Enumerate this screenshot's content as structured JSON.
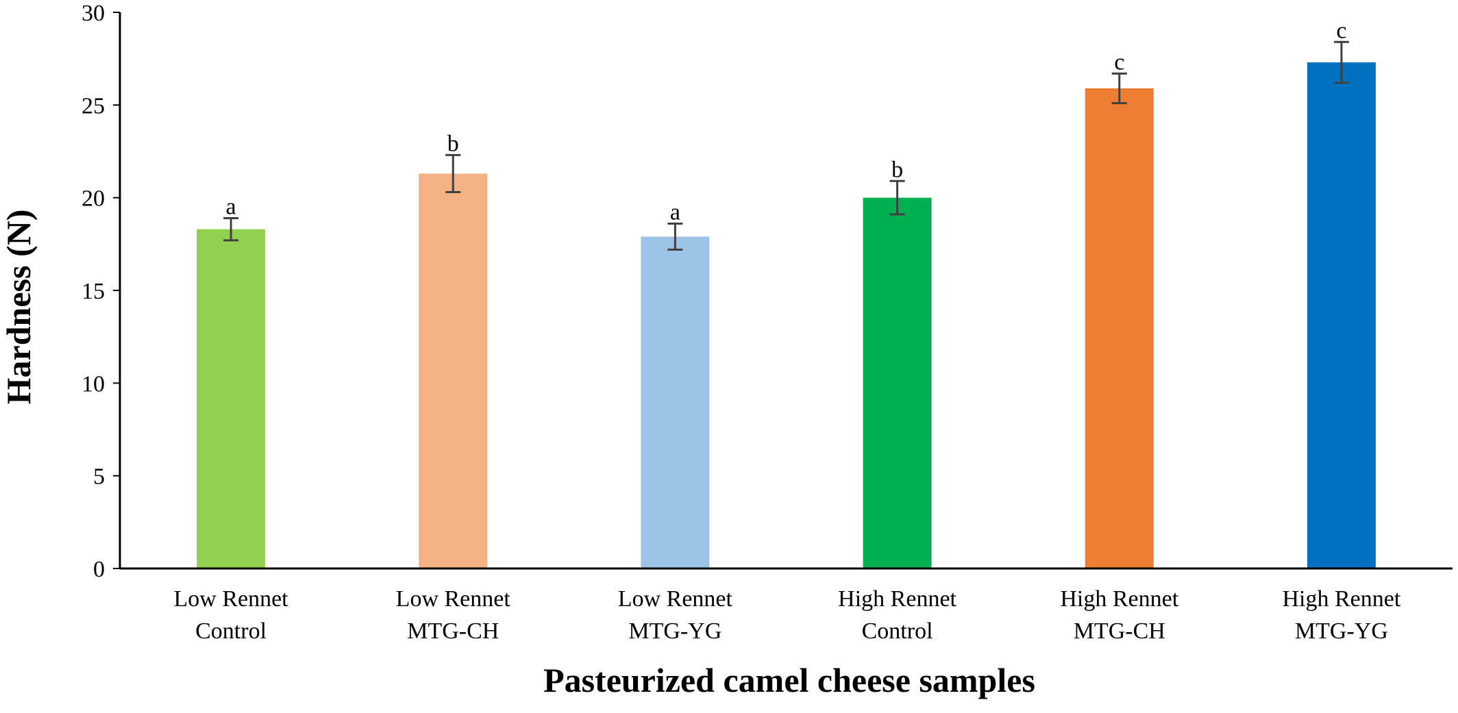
{
  "chart_data": {
    "type": "bar",
    "ylabel": "Hardness (N)",
    "xlabel": "Pasteurized camel cheese samples",
    "ylim": [
      0,
      30
    ],
    "yticks": [
      0,
      5,
      10,
      15,
      20,
      25,
      30
    ],
    "grid": false,
    "legend": "none",
    "categories": [
      [
        "Low Rennet",
        "Control"
      ],
      [
        "Low Rennet",
        "MTG-CH"
      ],
      [
        "Low Rennet",
        "MTG-YG"
      ],
      [
        "High Rennet",
        "Control"
      ],
      [
        "High Rennet",
        "MTG-CH"
      ],
      [
        "High Rennet",
        "MTG-YG"
      ]
    ],
    "values": [
      18.3,
      21.3,
      17.9,
      20.0,
      25.9,
      27.3
    ],
    "errors": [
      0.6,
      1.0,
      0.7,
      0.9,
      0.8,
      1.1
    ],
    "significance": [
      "a",
      "b",
      "a",
      "b",
      "c",
      "c"
    ],
    "colors": [
      "#92D050",
      "#F4B183",
      "#9DC3E6",
      "#00B050",
      "#ED7D31",
      "#0070C0"
    ],
    "error_bar_color": "#404040"
  }
}
